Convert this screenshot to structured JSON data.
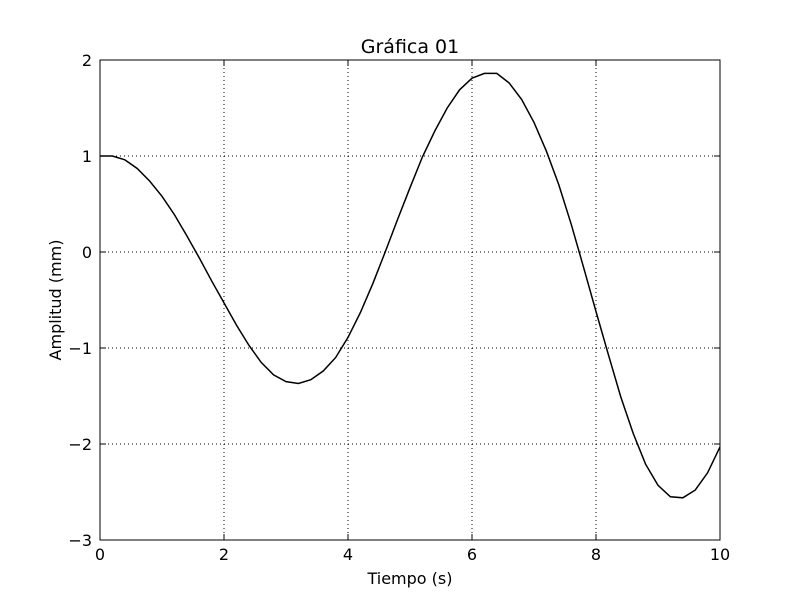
{
  "chart_data": {
    "type": "line",
    "title": "Gráfica 01",
    "xlabel": "Tiempo (s)",
    "ylabel": "Amplitud (mm)",
    "xlim": [
      0,
      10
    ],
    "ylim": [
      -3,
      2
    ],
    "xticks": [
      0,
      2,
      4,
      6,
      8,
      10
    ],
    "xtick_labels": [
      "0",
      "2",
      "4",
      "6",
      "8",
      "10"
    ],
    "yticks": [
      -3,
      -2,
      -1,
      0,
      1,
      2
    ],
    "ytick_labels": [
      "−3",
      "−2",
      "−1",
      "0",
      "1",
      "2"
    ],
    "grid": true,
    "line_color": "#000000",
    "series": [
      {
        "x": [
          0,
          0.2,
          0.4,
          0.6,
          0.8,
          1.0,
          1.2,
          1.4,
          1.6,
          1.8,
          2.0,
          2.2,
          2.4,
          2.6,
          2.8,
          3.0,
          3.2,
          3.4,
          3.6,
          3.8,
          4.0,
          4.2,
          4.4,
          4.6,
          4.8,
          5.0,
          5.2,
          5.4,
          5.6,
          5.8,
          6.0,
          6.2,
          6.4,
          6.6,
          6.8,
          7.0,
          7.2,
          7.4,
          7.6,
          7.8,
          8.0,
          8.2,
          8.4,
          8.6,
          8.8,
          9.0,
          9.2,
          9.4,
          9.6,
          9.8,
          10.0
        ],
        "values": [
          1.0,
          1.0,
          0.96,
          0.87,
          0.74,
          0.58,
          0.39,
          0.17,
          -0.06,
          -0.3,
          -0.53,
          -0.76,
          -0.97,
          -1.15,
          -1.28,
          -1.35,
          -1.37,
          -1.33,
          -1.24,
          -1.1,
          -0.89,
          -0.63,
          -0.33,
          0.0,
          0.34,
          0.67,
          0.99,
          1.26,
          1.5,
          1.69,
          1.81,
          1.86,
          1.86,
          1.76,
          1.59,
          1.35,
          1.05,
          0.7,
          0.29,
          -0.16,
          -0.62,
          -1.07,
          -1.51,
          -1.89,
          -2.21,
          -2.43,
          -2.55,
          -2.56,
          -2.48,
          -2.3,
          -2.03
        ]
      }
    ]
  }
}
